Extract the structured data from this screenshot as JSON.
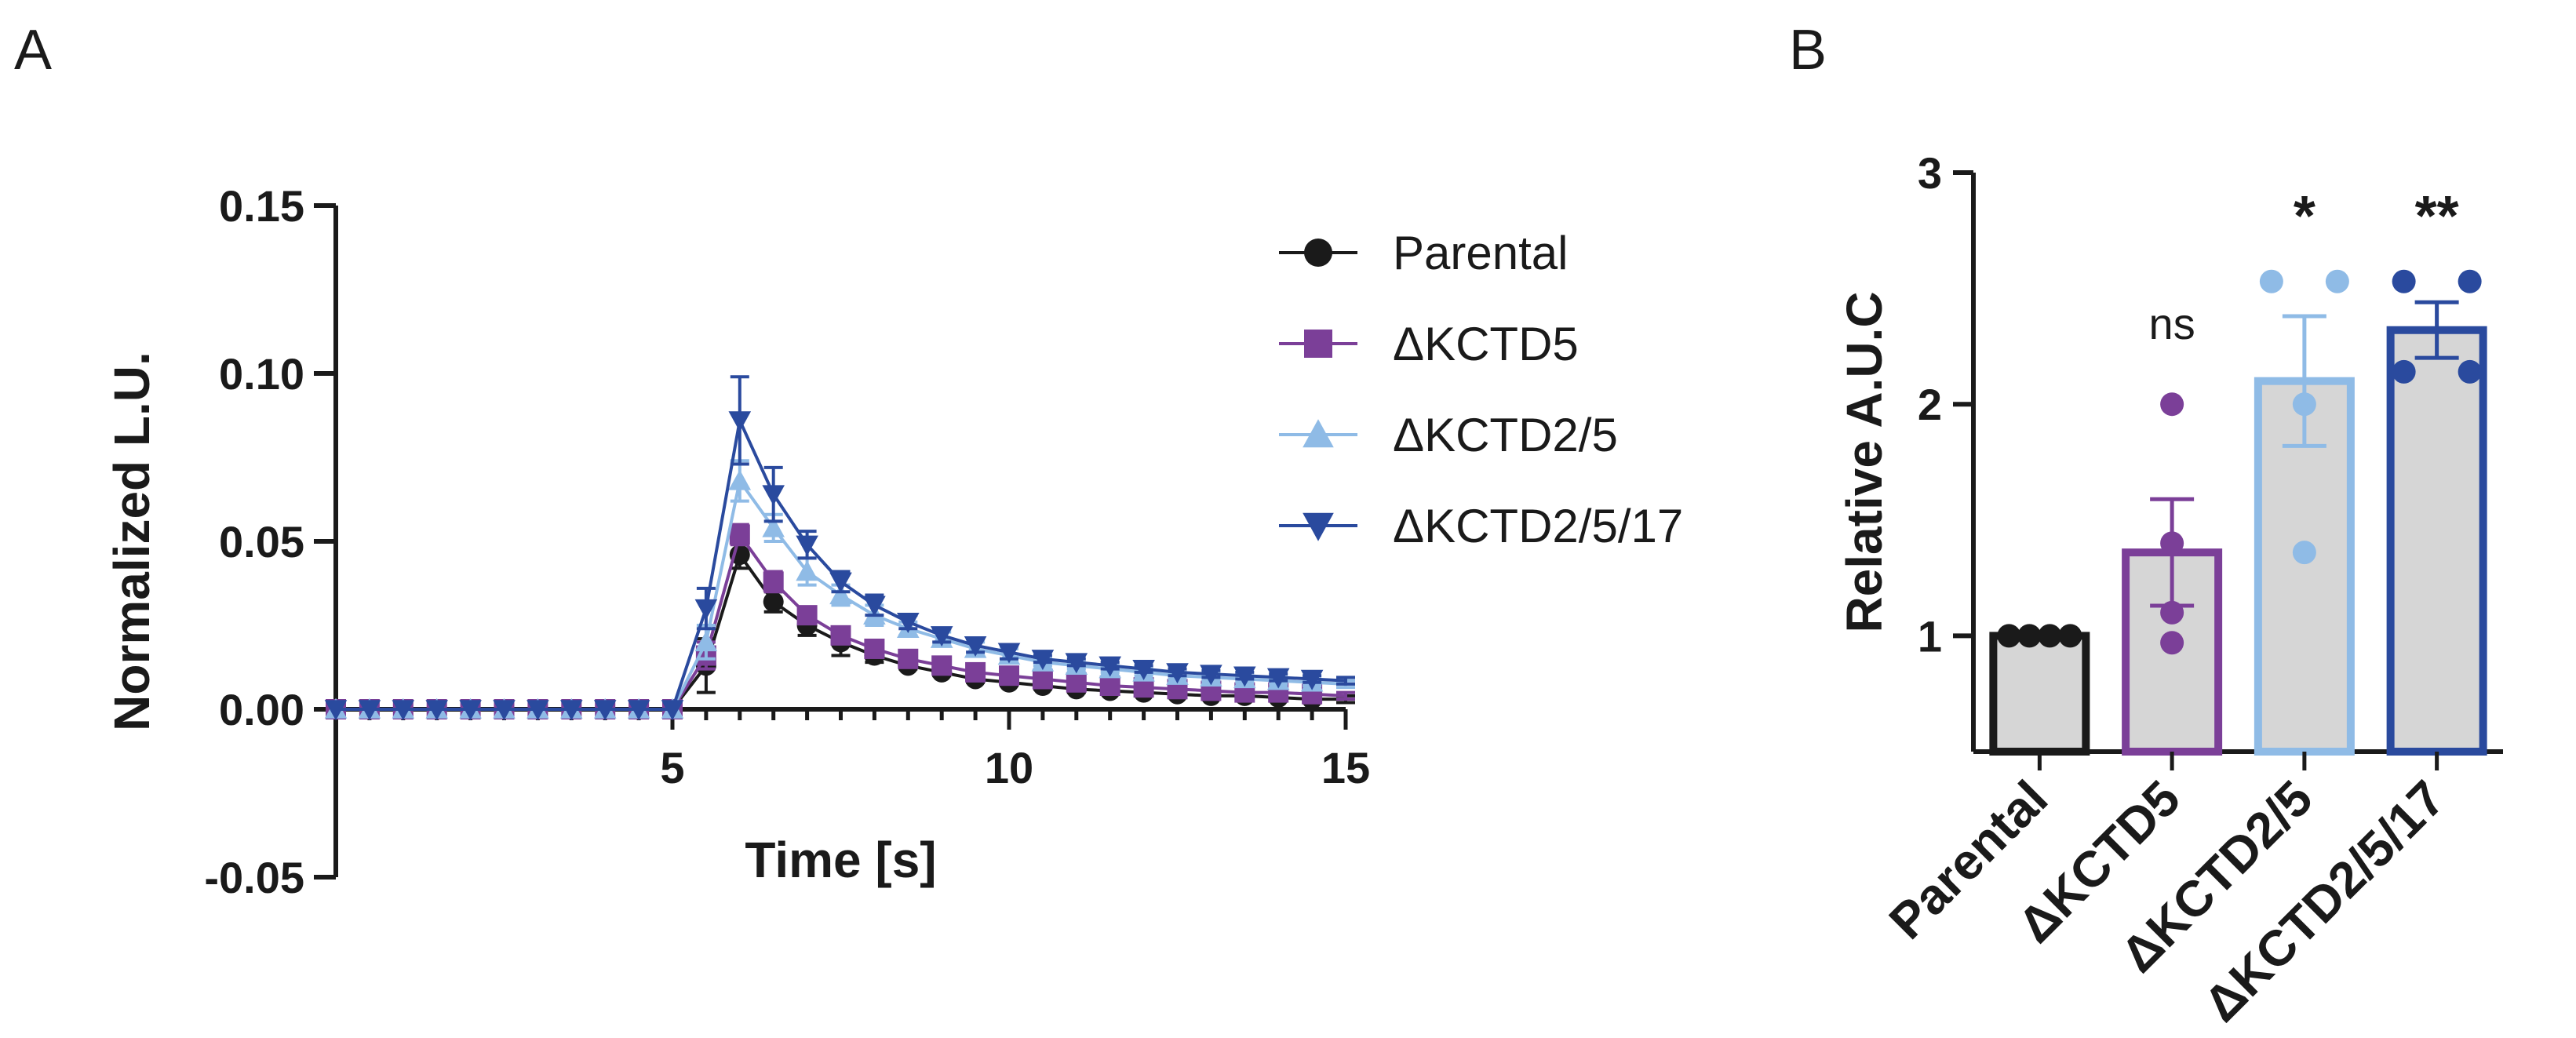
{
  "panel_labels": {
    "a": "A",
    "b": "B"
  },
  "chart_data": [
    {
      "type": "line",
      "panel": "A",
      "xlabel": "Time [s]",
      "ylabel": "Normalized L.U.",
      "xlim": [
        0,
        15
      ],
      "ylim": [
        -0.05,
        0.15
      ],
      "x_ticks": [
        5,
        10,
        15
      ],
      "y_ticks": [
        -0.05,
        0.0,
        0.05,
        0.1,
        0.15
      ],
      "x_tick_labels": [
        "5",
        "10",
        "15"
      ],
      "y_tick_labels": [
        "-0.05",
        "0.00",
        "0.05",
        "0.10",
        "0.15"
      ],
      "legend_position": "top-right",
      "x": [
        0,
        0.5,
        1.0,
        1.5,
        2.0,
        2.5,
        3.0,
        3.5,
        4.0,
        4.5,
        5.0,
        5.5,
        6.0,
        6.5,
        7.0,
        7.5,
        8.0,
        8.5,
        9.0,
        9.5,
        10.0,
        10.5,
        11.0,
        11.5,
        12.0,
        12.5,
        13.0,
        13.5,
        14.0,
        14.5,
        15.0
      ],
      "series": [
        {
          "name": "Parental",
          "marker": "circle",
          "color": "#1a1a1a",
          "values": [
            0,
            0,
            0,
            0,
            0,
            0,
            0,
            0,
            0,
            0,
            0,
            0.013,
            0.046,
            0.032,
            0.025,
            0.02,
            0.016,
            0.013,
            0.011,
            0.009,
            0.008,
            0.007,
            0.006,
            0.0055,
            0.005,
            0.0045,
            0.004,
            0.004,
            0.0035,
            0.003,
            0.003
          ],
          "errors": [
            0,
            0,
            0,
            0,
            0,
            0,
            0,
            0,
            0,
            0,
            0,
            0.008,
            0.004,
            0.003,
            0.003,
            0.004,
            0.002,
            0.001,
            0.001,
            0.001,
            0.001,
            0.001,
            0.001,
            0.001,
            0.001,
            0.001,
            0.001,
            0.001,
            0.001,
            0.001,
            0.001
          ]
        },
        {
          "name": "ΔKCTD5",
          "marker": "square",
          "color": "#7b3f98",
          "values": [
            0,
            0,
            0,
            0,
            0,
            0,
            0,
            0,
            0,
            0,
            0,
            0.016,
            0.052,
            0.038,
            0.028,
            0.022,
            0.018,
            0.015,
            0.013,
            0.011,
            0.01,
            0.009,
            0.008,
            0.007,
            0.0065,
            0.006,
            0.0055,
            0.005,
            0.005,
            0.0045,
            0.004
          ],
          "errors": [
            0,
            0,
            0,
            0,
            0,
            0,
            0,
            0,
            0,
            0,
            0,
            0.004,
            0.003,
            0.003,
            0.002,
            0.002,
            0.002,
            0.001,
            0.001,
            0.001,
            0.001,
            0.001,
            0.001,
            0.001,
            0.001,
            0.001,
            0.001,
            0.001,
            0.001,
            0.001,
            0.001
          ]
        },
        {
          "name": "ΔKCTD2/5",
          "marker": "triangle-up",
          "color": "#8fbbe6",
          "values": [
            0,
            0,
            0,
            0,
            0,
            0,
            0,
            0,
            0,
            0,
            0,
            0.02,
            0.068,
            0.054,
            0.041,
            0.034,
            0.028,
            0.024,
            0.021,
            0.018,
            0.016,
            0.014,
            0.013,
            0.012,
            0.011,
            0.01,
            0.0095,
            0.009,
            0.0085,
            0.008,
            0.0075
          ],
          "errors": [
            0,
            0,
            0,
            0,
            0,
            0,
            0,
            0,
            0,
            0,
            0,
            0.005,
            0.006,
            0.004,
            0.004,
            0.003,
            0.003,
            0.002,
            0.002,
            0.002,
            0.002,
            0.001,
            0.001,
            0.001,
            0.001,
            0.001,
            0.001,
            0.001,
            0.001,
            0.001,
            0.001
          ]
        },
        {
          "name": "ΔKCTD2/5/17",
          "marker": "triangle-down",
          "color": "#2a4a9e",
          "values": [
            0,
            0,
            0,
            0,
            0,
            0,
            0,
            0,
            0,
            0,
            0,
            0.03,
            0.086,
            0.064,
            0.049,
            0.038,
            0.031,
            0.026,
            0.022,
            0.019,
            0.017,
            0.015,
            0.014,
            0.013,
            0.012,
            0.011,
            0.0105,
            0.01,
            0.0095,
            0.009,
            0.0085
          ],
          "errors": [
            0,
            0,
            0,
            0,
            0,
            0,
            0,
            0,
            0,
            0,
            0,
            0.006,
            0.013,
            0.008,
            0.004,
            0.003,
            0.003,
            0.002,
            0.002,
            0.002,
            0.002,
            0.001,
            0.001,
            0.001,
            0.001,
            0.001,
            0.001,
            0.001,
            0.001,
            0.001,
            0.001
          ]
        }
      ]
    },
    {
      "type": "bar",
      "panel": "B",
      "ylabel": "Relative  A.U.C",
      "ylim": [
        0.5,
        3
      ],
      "y_ticks": [
        1,
        2,
        3
      ],
      "y_tick_labels": [
        "1",
        "2",
        "3"
      ],
      "categories": [
        "Parental",
        "ΔKCTD5",
        "ΔKCTD2/5",
        "ΔKCTD2/5/17"
      ],
      "values": [
        1.0,
        1.36,
        2.1,
        2.32
      ],
      "errors": [
        0.0,
        0.23,
        0.28,
        0.12
      ],
      "colors": [
        "#1a1a1a",
        "#7b3f98",
        "#8fbbe6",
        "#2a4a9e"
      ],
      "fill": "#d6d6d6",
      "points": [
        [
          1.0,
          1.0,
          1.0,
          1.0
        ],
        [
          2.0,
          1.4,
          1.1,
          0.97
        ],
        [
          2.53,
          2.53,
          2.0,
          1.36
        ],
        [
          2.53,
          2.53,
          2.14,
          2.14
        ]
      ],
      "significance": [
        "",
        "ns",
        "*",
        "**"
      ]
    }
  ]
}
